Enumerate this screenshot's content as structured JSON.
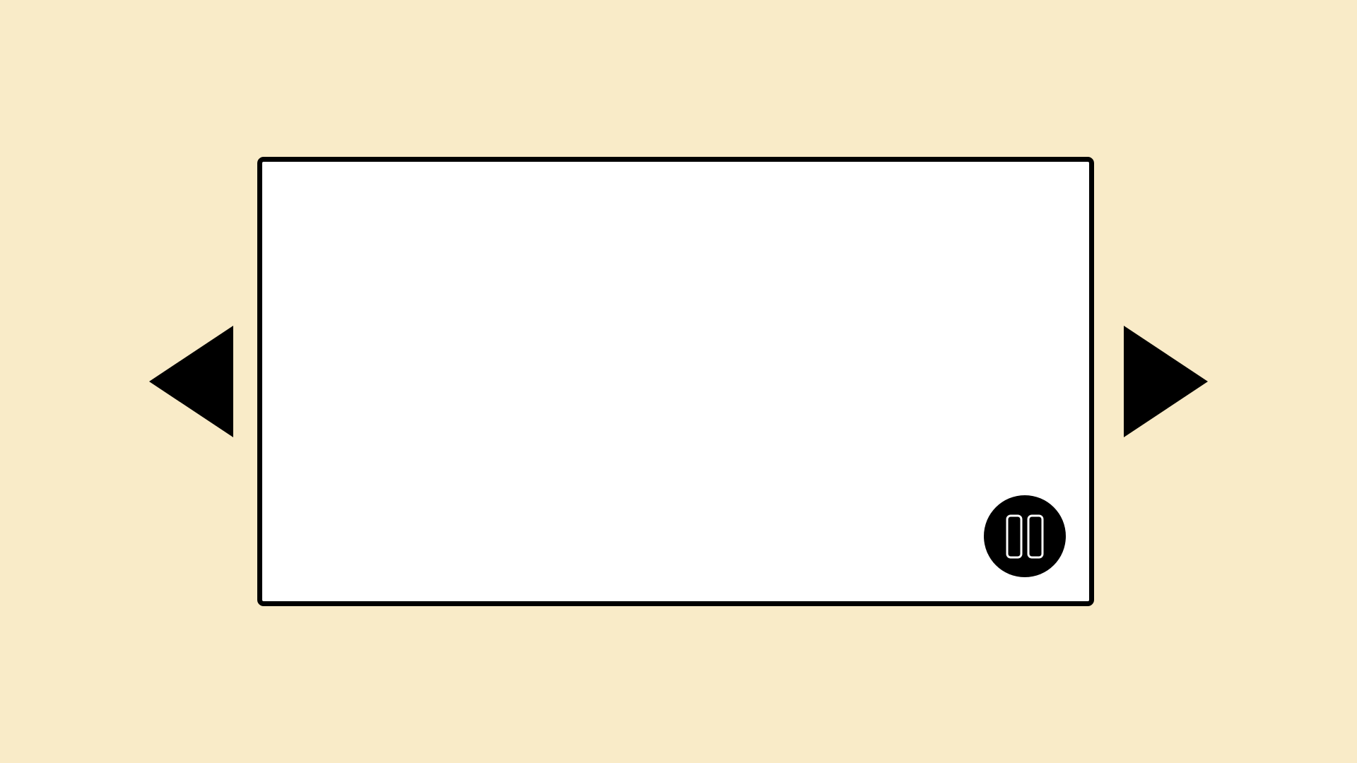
{
  "carousel": {
    "previous_icon": "triangle-left-icon",
    "next_icon": "triangle-right-icon",
    "pause_icon": "pause-icon",
    "playing": true
  },
  "colors": {
    "background": "#f9ebc8",
    "panel": "#ffffff",
    "foreground": "#000000"
  }
}
